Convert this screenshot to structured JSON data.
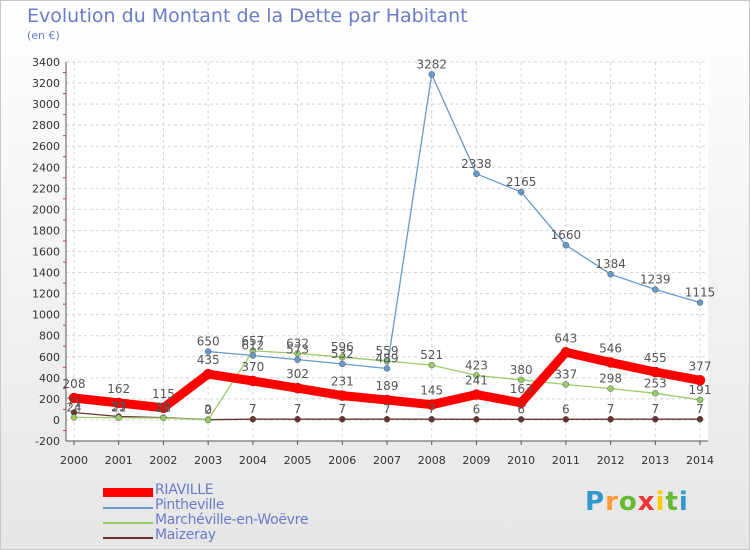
{
  "header": {
    "title": "Evolution du Montant de la Dette par Habitant",
    "subtitle": "(en €)"
  },
  "logo": {
    "letters": [
      "P",
      "r",
      "o",
      "x",
      "i",
      "t",
      "i"
    ]
  },
  "chart_data": {
    "type": "line",
    "x": [
      "2000",
      "2001",
      "2002",
      "2003",
      "2004",
      "2005",
      "2006",
      "2007",
      "2008",
      "2009",
      "2010",
      "2011",
      "2012",
      "2013",
      "2014"
    ],
    "ylim": [
      -200,
      3400
    ],
    "yticks": [
      -200,
      0,
      200,
      400,
      600,
      800,
      1000,
      1200,
      1400,
      1600,
      1800,
      2000,
      2200,
      2400,
      2600,
      2800,
      3000,
      3200,
      3400
    ],
    "grid": true,
    "legend_position": "bottom-left",
    "series": [
      {
        "name": "RIAVILLE",
        "color": "#ff0000",
        "values": [
          208,
          162,
          115,
          435,
          370,
          302,
          231,
          189,
          145,
          241,
          163,
          643,
          546,
          455,
          377
        ]
      },
      {
        "name": "Pintheville",
        "color": "#6699cc",
        "values": [
          null,
          null,
          null,
          650,
          612,
          573,
          532,
          489,
          3282,
          2338,
          2165,
          1660,
          1384,
          1239,
          1115
        ]
      },
      {
        "name": "Marchéville-en-Woëvre",
        "color": "#99cc66",
        "values": [
          24,
          21,
          18,
          0,
          657,
          632,
          596,
          559,
          521,
          423,
          380,
          337,
          298,
          253,
          191
        ]
      },
      {
        "name": "Maizeray",
        "color": "#663333",
        "values": [
          71,
          33,
          22,
          2,
          7,
          7,
          7,
          7,
          7,
          6,
          6,
          6,
          7,
          7,
          7
        ]
      }
    ]
  }
}
